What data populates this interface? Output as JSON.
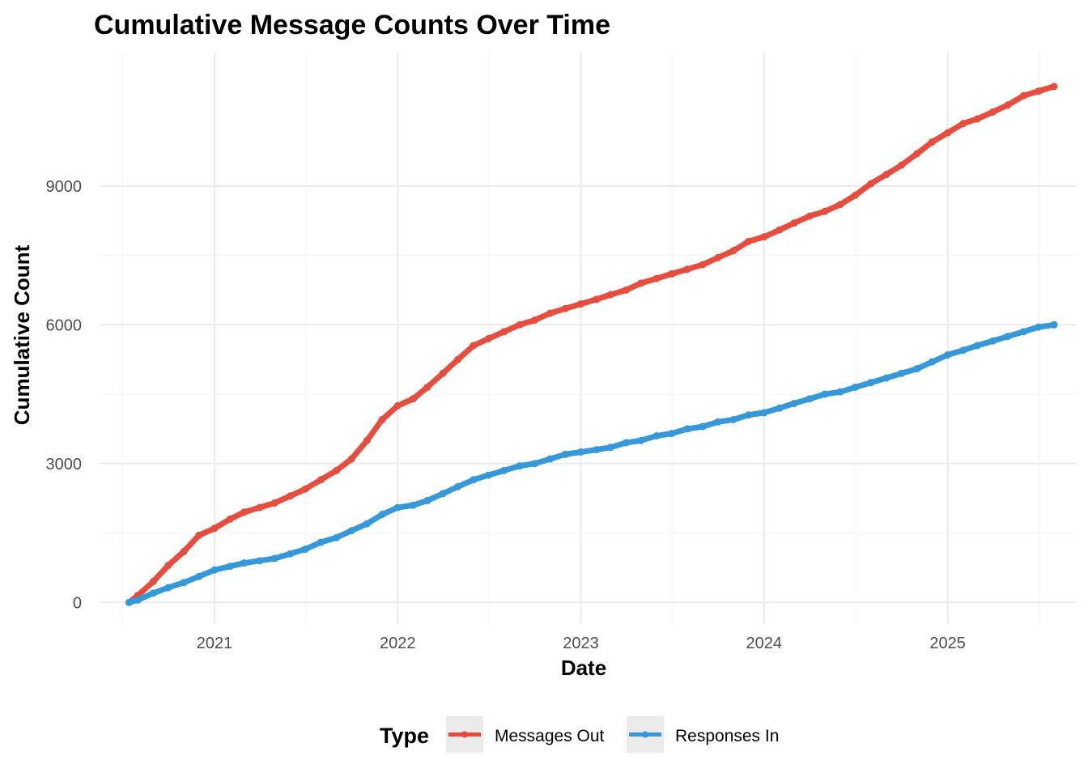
{
  "chart_data": {
    "type": "line",
    "title": "Cumulative Message Counts Over Time",
    "xlabel": "Date",
    "ylabel": "Cumulative Count",
    "x_ticks": [
      "2021",
      "2022",
      "2023",
      "2024",
      "2025"
    ],
    "y_ticks": [
      0,
      3000,
      6000,
      9000
    ],
    "xlim": [
      "2020-05-17",
      "2025-09-15"
    ],
    "ylim": [
      -450,
      11900
    ],
    "grid": true,
    "legend": {
      "title": "Type",
      "position": "bottom"
    },
    "series": [
      {
        "name": "Messages Out",
        "color": "#e74c3c",
        "points": [
          [
            "2020-07-15",
            0
          ],
          [
            "2020-08-01",
            150
          ],
          [
            "2020-09-01",
            450
          ],
          [
            "2020-10-01",
            800
          ],
          [
            "2020-11-01",
            1100
          ],
          [
            "2020-12-01",
            1450
          ],
          [
            "2021-01-01",
            1600
          ],
          [
            "2021-02-01",
            1800
          ],
          [
            "2021-03-01",
            1950
          ],
          [
            "2021-04-01",
            2050
          ],
          [
            "2021-05-01",
            2150
          ],
          [
            "2021-06-01",
            2300
          ],
          [
            "2021-07-01",
            2450
          ],
          [
            "2021-08-01",
            2650
          ],
          [
            "2021-09-01",
            2850
          ],
          [
            "2021-10-01",
            3100
          ],
          [
            "2021-11-01",
            3500
          ],
          [
            "2021-12-01",
            3950
          ],
          [
            "2022-01-01",
            4250
          ],
          [
            "2022-02-01",
            4400
          ],
          [
            "2022-03-01",
            4650
          ],
          [
            "2022-04-01",
            4950
          ],
          [
            "2022-05-01",
            5250
          ],
          [
            "2022-06-01",
            5550
          ],
          [
            "2022-07-01",
            5700
          ],
          [
            "2022-08-01",
            5850
          ],
          [
            "2022-09-01",
            6000
          ],
          [
            "2022-10-01",
            6100
          ],
          [
            "2022-11-01",
            6250
          ],
          [
            "2022-12-01",
            6350
          ],
          [
            "2023-01-01",
            6450
          ],
          [
            "2023-02-01",
            6550
          ],
          [
            "2023-03-01",
            6650
          ],
          [
            "2023-04-01",
            6750
          ],
          [
            "2023-05-01",
            6900
          ],
          [
            "2023-06-01",
            7000
          ],
          [
            "2023-07-01",
            7100
          ],
          [
            "2023-08-01",
            7200
          ],
          [
            "2023-09-01",
            7300
          ],
          [
            "2023-10-01",
            7450
          ],
          [
            "2023-11-01",
            7600
          ],
          [
            "2023-12-01",
            7800
          ],
          [
            "2024-01-01",
            7900
          ],
          [
            "2024-02-01",
            8050
          ],
          [
            "2024-03-01",
            8200
          ],
          [
            "2024-04-01",
            8350
          ],
          [
            "2024-05-01",
            8450
          ],
          [
            "2024-06-01",
            8600
          ],
          [
            "2024-07-01",
            8800
          ],
          [
            "2024-08-01",
            9050
          ],
          [
            "2024-09-01",
            9250
          ],
          [
            "2024-10-01",
            9450
          ],
          [
            "2024-11-01",
            9700
          ],
          [
            "2024-12-01",
            9950
          ],
          [
            "2025-01-01",
            10150
          ],
          [
            "2025-02-01",
            10350
          ],
          [
            "2025-03-01",
            10450
          ],
          [
            "2025-04-01",
            10600
          ],
          [
            "2025-05-01",
            10750
          ],
          [
            "2025-06-01",
            10950
          ],
          [
            "2025-07-01",
            11050
          ],
          [
            "2025-08-01",
            11150
          ]
        ]
      },
      {
        "name": "Responses In",
        "color": "#3498db",
        "points": [
          [
            "2020-07-15",
            0
          ],
          [
            "2020-08-01",
            50
          ],
          [
            "2020-09-01",
            200
          ],
          [
            "2020-10-01",
            320
          ],
          [
            "2020-11-01",
            430
          ],
          [
            "2020-12-01",
            560
          ],
          [
            "2021-01-01",
            700
          ],
          [
            "2021-02-01",
            780
          ],
          [
            "2021-03-01",
            850
          ],
          [
            "2021-04-01",
            900
          ],
          [
            "2021-05-01",
            950
          ],
          [
            "2021-06-01",
            1050
          ],
          [
            "2021-07-01",
            1150
          ],
          [
            "2021-08-01",
            1300
          ],
          [
            "2021-09-01",
            1400
          ],
          [
            "2021-10-01",
            1550
          ],
          [
            "2021-11-01",
            1700
          ],
          [
            "2021-12-01",
            1900
          ],
          [
            "2022-01-01",
            2050
          ],
          [
            "2022-02-01",
            2100
          ],
          [
            "2022-03-01",
            2200
          ],
          [
            "2022-04-01",
            2350
          ],
          [
            "2022-05-01",
            2500
          ],
          [
            "2022-06-01",
            2650
          ],
          [
            "2022-07-01",
            2750
          ],
          [
            "2022-08-01",
            2850
          ],
          [
            "2022-09-01",
            2950
          ],
          [
            "2022-10-01",
            3000
          ],
          [
            "2022-11-01",
            3100
          ],
          [
            "2022-12-01",
            3200
          ],
          [
            "2023-01-01",
            3250
          ],
          [
            "2023-02-01",
            3300
          ],
          [
            "2023-03-01",
            3350
          ],
          [
            "2023-04-01",
            3450
          ],
          [
            "2023-05-01",
            3500
          ],
          [
            "2023-06-01",
            3600
          ],
          [
            "2023-07-01",
            3650
          ],
          [
            "2023-08-01",
            3750
          ],
          [
            "2023-09-01",
            3800
          ],
          [
            "2023-10-01",
            3900
          ],
          [
            "2023-11-01",
            3950
          ],
          [
            "2023-12-01",
            4050
          ],
          [
            "2024-01-01",
            4100
          ],
          [
            "2024-02-01",
            4200
          ],
          [
            "2024-03-01",
            4300
          ],
          [
            "2024-04-01",
            4400
          ],
          [
            "2024-05-01",
            4500
          ],
          [
            "2024-06-01",
            4550
          ],
          [
            "2024-07-01",
            4650
          ],
          [
            "2024-08-01",
            4750
          ],
          [
            "2024-09-01",
            4850
          ],
          [
            "2024-10-01",
            4950
          ],
          [
            "2024-11-01",
            5050
          ],
          [
            "2024-12-01",
            5200
          ],
          [
            "2025-01-01",
            5350
          ],
          [
            "2025-02-01",
            5450
          ],
          [
            "2025-03-01",
            5550
          ],
          [
            "2025-04-01",
            5650
          ],
          [
            "2025-05-01",
            5750
          ],
          [
            "2025-06-01",
            5850
          ],
          [
            "2025-07-01",
            5950
          ],
          [
            "2025-08-01",
            6000
          ]
        ]
      }
    ]
  }
}
